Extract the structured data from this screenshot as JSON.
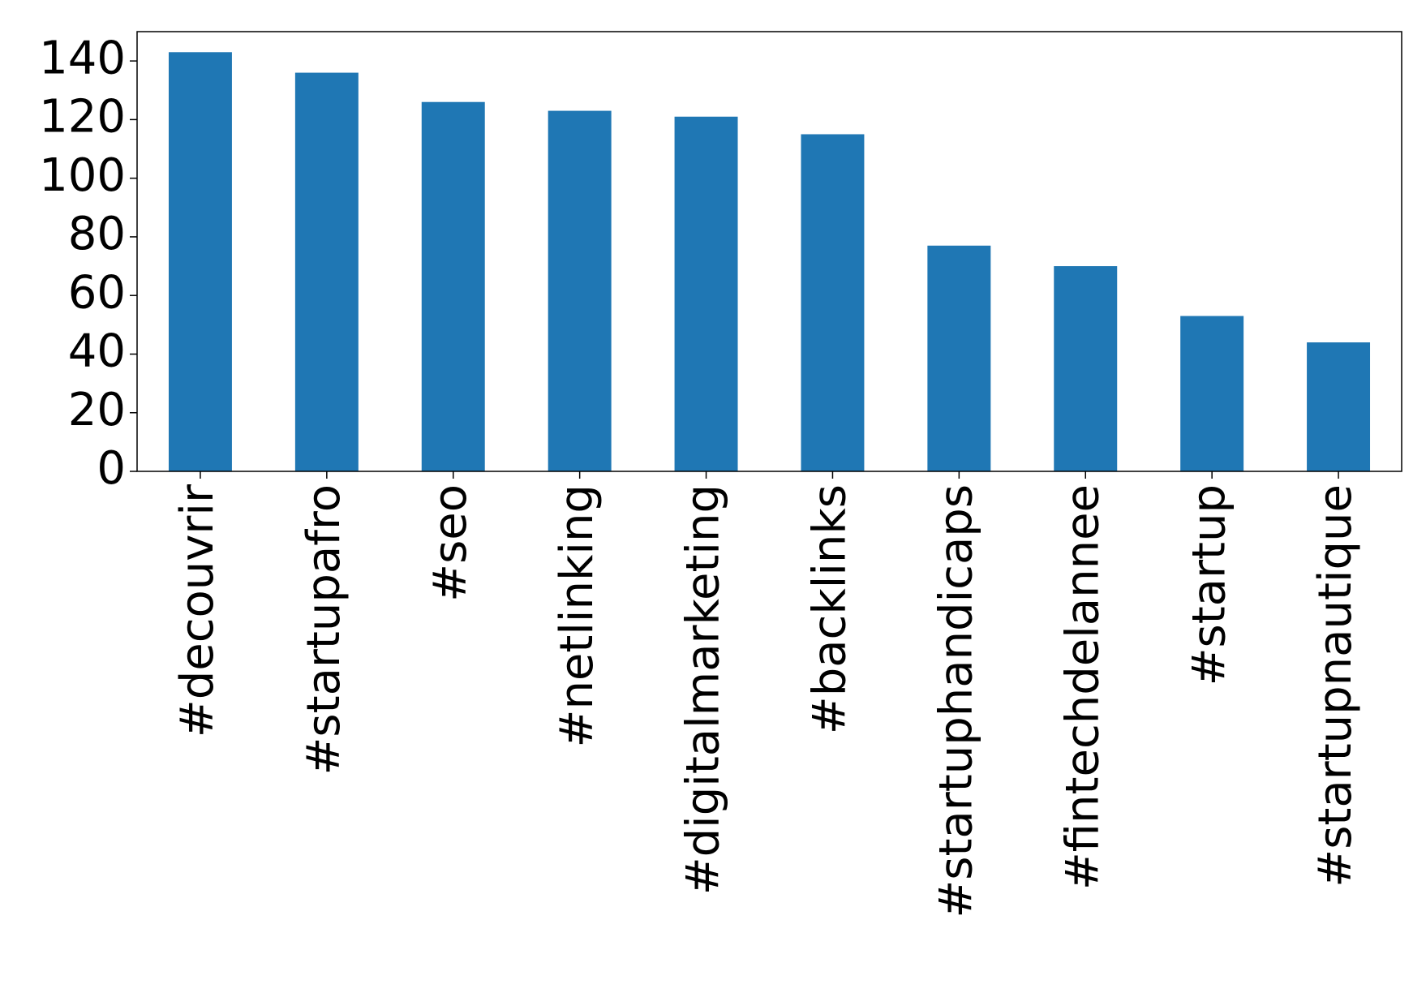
{
  "chart_data": {
    "type": "bar",
    "categories": [
      "#decouvrir",
      "#startupafro",
      "#seo",
      "#netlinking",
      "#digitalmarketing",
      "#backlinks",
      "#startuphandicaps",
      "#fintechdelannee",
      "#startup",
      "#startupnautique"
    ],
    "values": [
      143,
      136,
      126,
      123,
      121,
      115,
      77,
      70,
      53,
      44
    ],
    "color": "#1f77b4",
    "ylim": [
      0,
      150
    ],
    "yticks": [
      0,
      20,
      40,
      60,
      80,
      100,
      120,
      140
    ],
    "grid": false
  }
}
